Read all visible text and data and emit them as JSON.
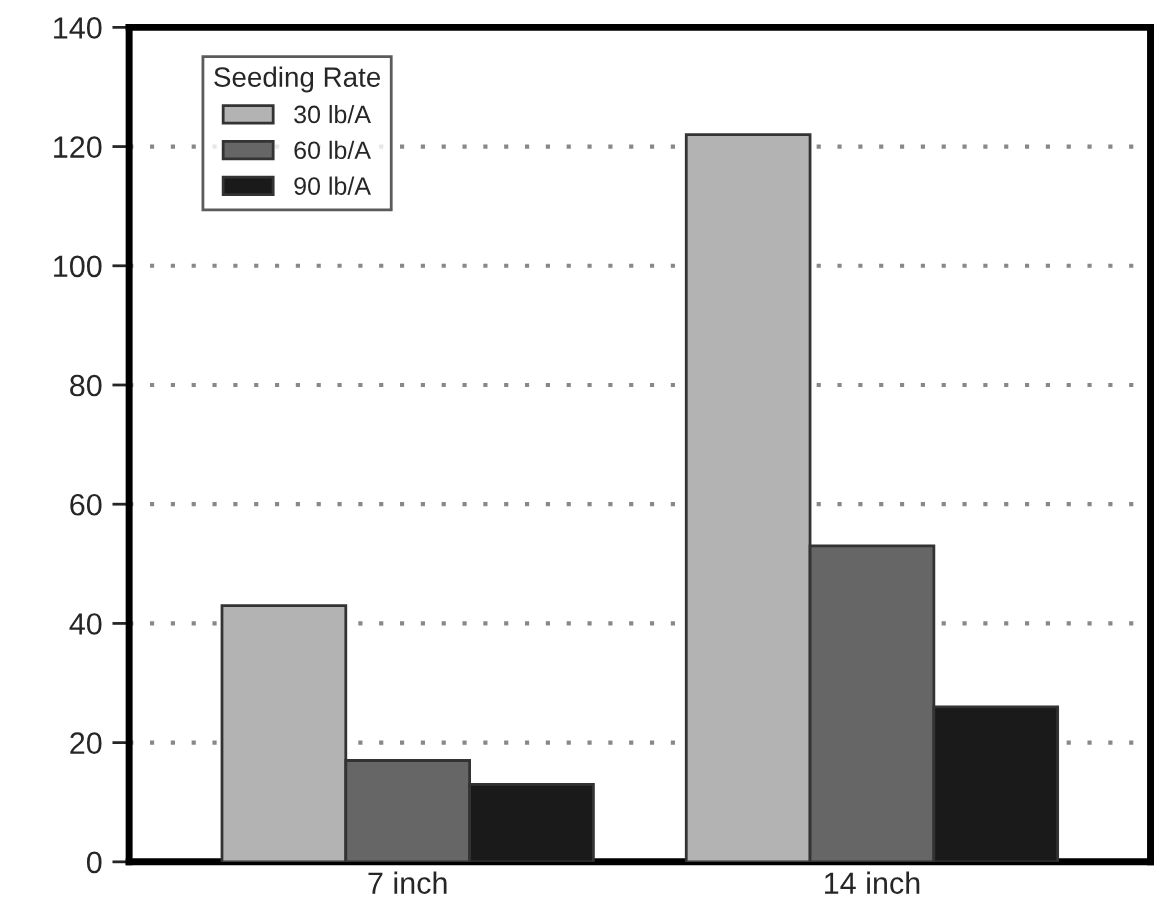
{
  "chart_data": {
    "type": "bar",
    "categories": [
      "7 inch",
      "14 inch"
    ],
    "series": [
      {
        "name": "30 lb/A",
        "color": "#b3b3b3",
        "values": [
          43,
          122
        ]
      },
      {
        "name": "60 lb/A",
        "color": "#666666",
        "values": [
          17,
          53
        ]
      },
      {
        "name": "90 lb/A",
        "color": "#1a1a1a",
        "values": [
          13,
          26
        ]
      }
    ],
    "legend_title": "Seeding Rate",
    "legend": "top left",
    "ylim": [
      0,
      140
    ],
    "yticks": [
      0,
      20,
      40,
      60,
      80,
      100,
      120,
      140
    ],
    "grid": "y"
  }
}
